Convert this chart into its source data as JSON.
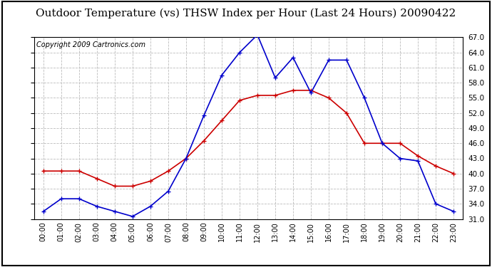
{
  "title": "Outdoor Temperature (vs) THSW Index per Hour (Last 24 Hours) 20090422",
  "copyright": "Copyright 2009 Cartronics.com",
  "hours": [
    "00:00",
    "01:00",
    "02:00",
    "03:00",
    "04:00",
    "05:00",
    "06:00",
    "07:00",
    "08:00",
    "09:00",
    "10:00",
    "11:00",
    "12:00",
    "13:00",
    "14:00",
    "15:00",
    "16:00",
    "17:00",
    "18:00",
    "19:00",
    "20:00",
    "21:00",
    "22:00",
    "23:00"
  ],
  "temp_red": [
    40.5,
    40.5,
    40.5,
    39.0,
    37.5,
    37.5,
    38.5,
    40.5,
    43.0,
    46.5,
    50.5,
    54.5,
    55.5,
    55.5,
    56.5,
    56.5,
    55.0,
    52.0,
    46.0,
    46.0,
    46.0,
    43.5,
    41.5,
    40.0
  ],
  "thsw_blue": [
    32.5,
    35.0,
    35.0,
    33.5,
    32.5,
    31.5,
    33.5,
    36.5,
    43.0,
    51.5,
    59.5,
    64.0,
    67.5,
    59.0,
    63.0,
    56.0,
    62.5,
    62.5,
    55.0,
    46.0,
    43.0,
    42.5,
    34.0,
    32.5
  ],
  "ylim": [
    31.0,
    67.0
  ],
  "yticks": [
    31.0,
    34.0,
    37.0,
    40.0,
    43.0,
    46.0,
    49.0,
    52.0,
    55.0,
    58.0,
    61.0,
    64.0,
    67.0
  ],
  "grid_color": "#bbbbbb",
  "bg_color": "#ffffff",
  "title_fontsize": 11,
  "copyright_fontsize": 7,
  "red_color": "#cc0000",
  "blue_color": "#0000cc",
  "marker": "+",
  "marker_size": 5,
  "line_width": 1.2
}
